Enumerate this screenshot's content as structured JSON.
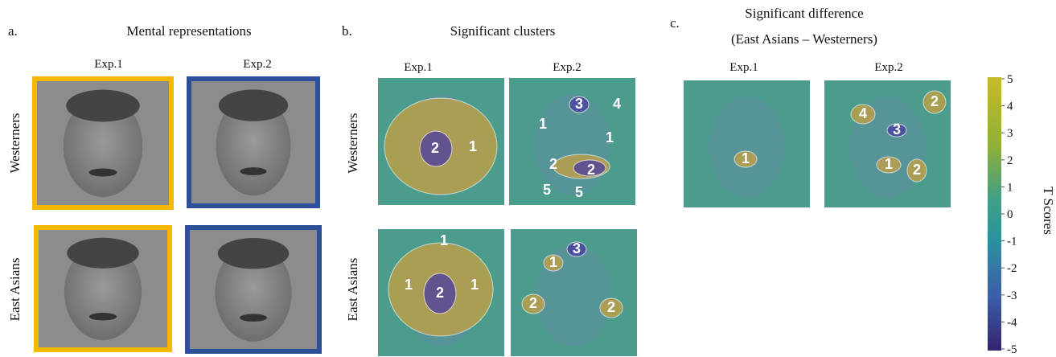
{
  "panel_a": {
    "label": "a.",
    "title": "Mental representations",
    "columns": [
      "Exp.1",
      "Exp.2"
    ],
    "rows": [
      "Westerners",
      "East Asians"
    ]
  },
  "panel_b": {
    "label": "b.",
    "title": "Significant clusters",
    "columns": [
      "Exp.1",
      "Exp.2"
    ],
    "rows": [
      "Westerners",
      "East Asians"
    ],
    "clusters": [
      [
        [
          "2",
          "1"
        ],
        [
          "3",
          "4",
          "1",
          "1",
          "2",
          "2",
          "5",
          "5"
        ]
      ],
      [
        [
          "1",
          "1",
          "2",
          "1"
        ],
        [
          "3",
          "1",
          "2",
          "2"
        ]
      ]
    ]
  },
  "panel_c": {
    "label": "c.",
    "title": "Significant difference",
    "subtitle": "(East Asians – Westerners)",
    "columns": [
      "Exp.1",
      "Exp.2"
    ],
    "clusters": [
      [
        "1"
      ],
      [
        "4",
        "2",
        "3",
        "1",
        "2"
      ]
    ]
  },
  "colorbar": {
    "title": "T Scores",
    "ticks": [
      5,
      4,
      3,
      2,
      1,
      0,
      -1,
      -2,
      -3,
      -4,
      -5
    ]
  }
}
